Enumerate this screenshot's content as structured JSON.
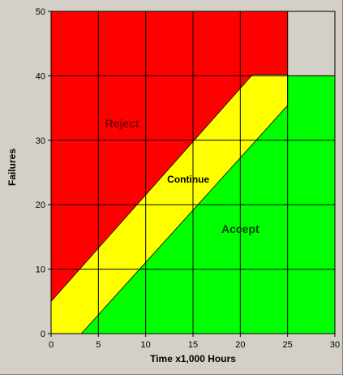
{
  "chart_data": {
    "type": "area",
    "title": "",
    "xlabel": "Time x1,000 Hours",
    "ylabel": "Failures",
    "xlim": [
      0,
      30
    ],
    "ylim": [
      0,
      50
    ],
    "x_ticks": [
      "0",
      "5",
      "10",
      "15",
      "20",
      "25",
      "30"
    ],
    "y_ticks": [
      "0",
      "10",
      "20",
      "30",
      "40",
      "50"
    ],
    "grid": true,
    "truncation_time": 25,
    "truncation_failures": 40,
    "series": [
      {
        "name": "Reject",
        "color": "#ff0000",
        "boundary": [
          [
            0,
            5
          ],
          [
            21.3,
            40.2
          ],
          [
            25,
            40.2
          ],
          [
            25,
            50
          ]
        ]
      },
      {
        "name": "Continue",
        "color": "#ffff00",
        "boundary_upper": [
          [
            0,
            5
          ],
          [
            21.3,
            40.2
          ],
          [
            25,
            40.2
          ]
        ],
        "boundary_lower": [
          [
            3.2,
            0
          ],
          [
            25,
            35.4
          ]
        ]
      },
      {
        "name": "Accept",
        "color": "#00ff00",
        "boundary": [
          [
            3.2,
            0
          ],
          [
            25,
            35.4
          ],
          [
            25,
            40
          ],
          [
            30,
            40
          ]
        ]
      }
    ],
    "annotations": [
      {
        "text": "Reject",
        "x": 7.5,
        "y": 32,
        "color": "#800000"
      },
      {
        "text": "Continue",
        "x": 14.5,
        "y": 23.4,
        "color": "#000000"
      },
      {
        "text": "Accept",
        "x": 20,
        "y": 15.6,
        "color": "#004000"
      }
    ]
  }
}
